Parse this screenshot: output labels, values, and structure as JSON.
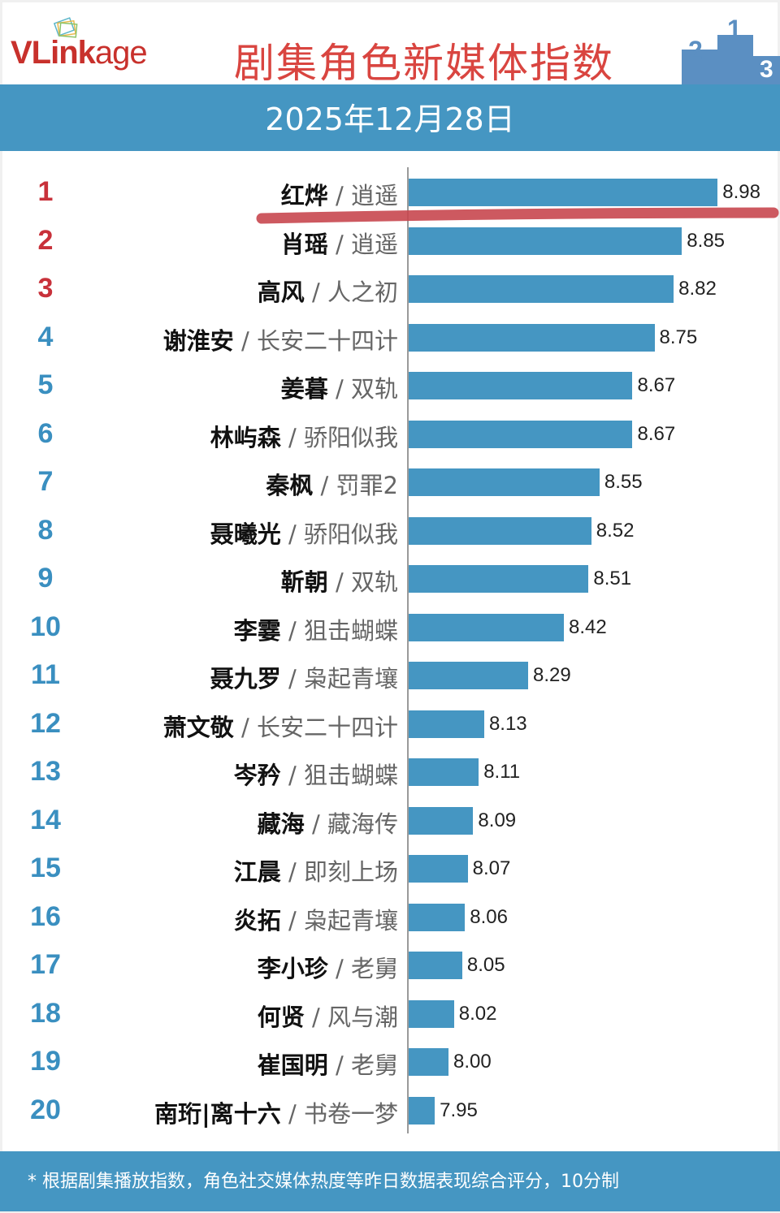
{
  "header": {
    "logo": "VLinkage",
    "title": "剧集角色新媒体指数",
    "date": "2025年12月28日"
  },
  "footer": {
    "note": "* 根据剧集播放指数，角色社交媒体热度等昨日数据表现综合评分，10分制"
  },
  "colors": {
    "bar": "#4596c2",
    "top_rank": "#c8313a",
    "rank": "#3a8fc0",
    "highlight": "#c8474f"
  },
  "chart_data": {
    "type": "bar",
    "orientation": "horizontal",
    "title": "剧集角色新媒体指数",
    "subtitle": "2025年12月28日",
    "ranks": [
      "1",
      "2",
      "3",
      "4",
      "5",
      "6",
      "7",
      "8",
      "9",
      "10",
      "11",
      "12",
      "13",
      "14",
      "15",
      "16",
      "17",
      "18",
      "19",
      "20"
    ],
    "names": [
      "红烨",
      "肖瑶",
      "高风",
      "谢淮安",
      "姜暮",
      "林屿森",
      "秦枫",
      "聂曦光",
      "靳朝",
      "李霎",
      "聂九罗",
      "萧文敬",
      "岑矜",
      "藏海",
      "江晨",
      "炎拓",
      "李小珍",
      "何贤",
      "崔国明",
      "南珩|离十六"
    ],
    "shows": [
      "逍遥",
      "逍遥",
      "人之初",
      "长安二十四计",
      "双轨",
      "骄阳似我",
      "罚罪2",
      "骄阳似我",
      "双轨",
      "狙击蝴蝶",
      "枭起青壤",
      "长安二十四计",
      "狙击蝴蝶",
      "藏海传",
      "即刻上场",
      "枭起青壤",
      "老舅",
      "风与潮",
      "老舅",
      "书卷一梦"
    ],
    "values": [
      "8.98",
      "8.85",
      "8.82",
      "8.75",
      "8.67",
      "8.67",
      "8.55",
      "8.52",
      "8.51",
      "8.42",
      "8.29",
      "8.13",
      "8.11",
      "8.09",
      "8.07",
      "8.06",
      "8.05",
      "8.02",
      "8.00",
      "7.95"
    ],
    "grid": false,
    "highlighted_rank": "1"
  }
}
